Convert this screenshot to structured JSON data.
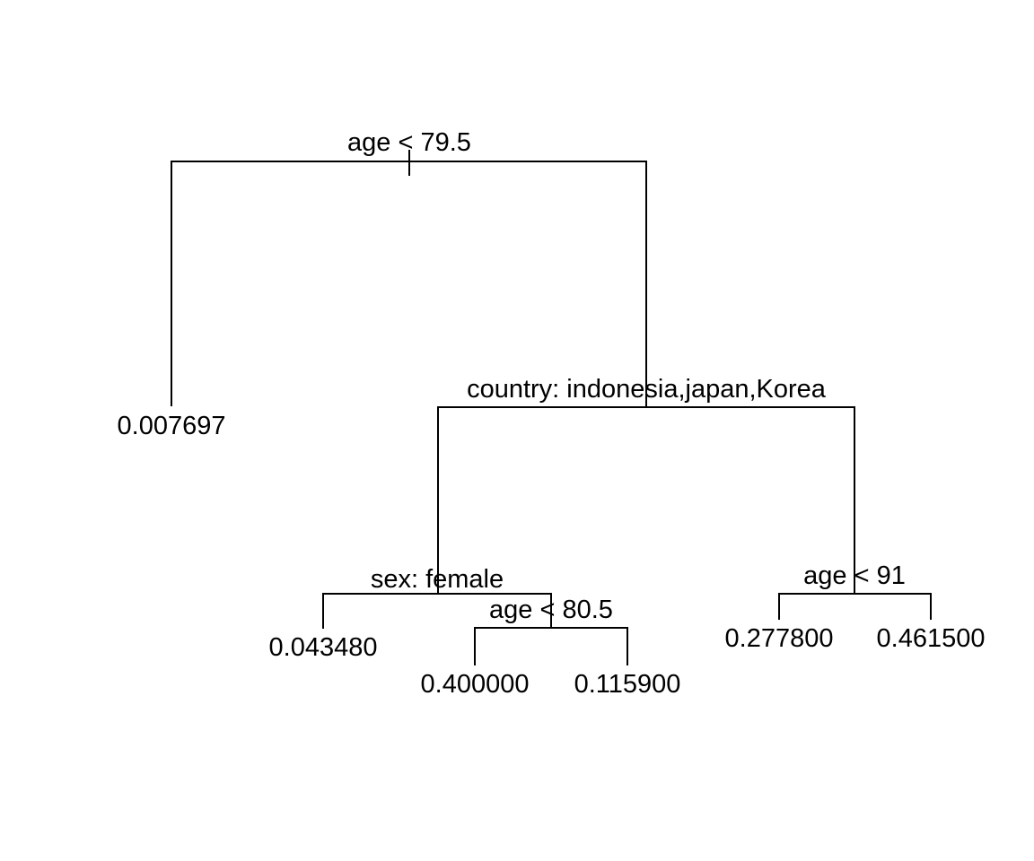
{
  "diagram": {
    "type": "regression-tree",
    "colors": {
      "line": "#000000",
      "text": "#000000",
      "background": "#ffffff"
    },
    "splits": {
      "root": "age < 79.5",
      "country": "country: indonesia,japan,Korea",
      "sex": "sex: female",
      "age_80": "age < 80.5",
      "age_91": "age < 91"
    },
    "leaves": {
      "leaf_1": "0.007697",
      "leaf_2": "0.043480",
      "leaf_3": "0.400000",
      "leaf_4": "0.115900",
      "leaf_5": "0.277800",
      "leaf_6": "0.461500"
    }
  }
}
